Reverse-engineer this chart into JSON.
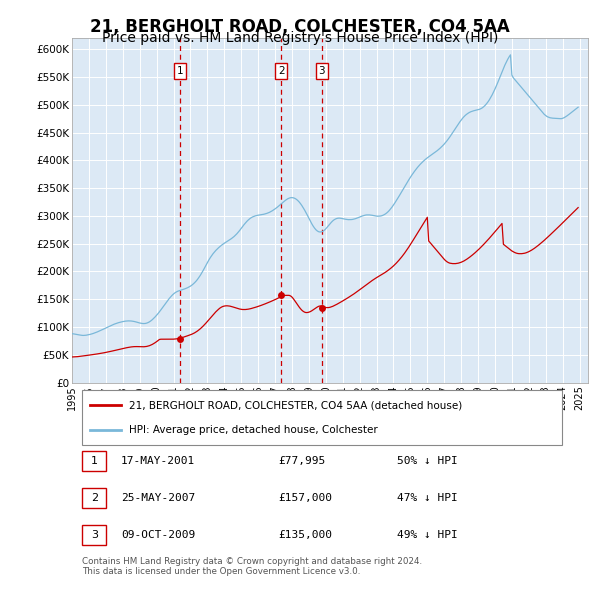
{
  "title": "21, BERGHOLT ROAD, COLCHESTER, CO4 5AA",
  "subtitle": "Price paid vs. HM Land Registry's House Price Index (HPI)",
  "title_fontsize": 12,
  "subtitle_fontsize": 10,
  "plot_bg_color": "#dce9f5",
  "ylim": [
    0,
    620000
  ],
  "yticks": [
    0,
    50000,
    100000,
    150000,
    200000,
    250000,
    300000,
    350000,
    400000,
    450000,
    500000,
    550000,
    600000
  ],
  "ytick_labels": [
    "£0",
    "£50K",
    "£100K",
    "£150K",
    "£200K",
    "£250K",
    "£300K",
    "£350K",
    "£400K",
    "£450K",
    "£500K",
    "£550K",
    "£600K"
  ],
  "xlim_start": 1995.0,
  "xlim_end": 2025.5,
  "hpi_color": "#7ab8d9",
  "price_color": "#cc0000",
  "vline_color": "#cc0000",
  "transactions": [
    {
      "date": "17-MAY-2001",
      "year": 2001.375,
      "price": 77995,
      "label": "1",
      "note": "50% ↓ HPI"
    },
    {
      "date": "25-MAY-2007",
      "year": 2007.375,
      "price": 157000,
      "label": "2",
      "note": "47% ↓ HPI"
    },
    {
      "date": "09-OCT-2009",
      "year": 2009.77,
      "price": 135000,
      "label": "3",
      "note": "49% ↓ HPI"
    }
  ],
  "legend_label_red": "21, BERGHOLT ROAD, COLCHESTER, CO4 5AA (detached house)",
  "legend_label_blue": "HPI: Average price, detached house, Colchester",
  "footer_line1": "Contains HM Land Registry data © Crown copyright and database right 2024.",
  "footer_line2": "This data is licensed under the Open Government Licence v3.0.",
  "hpi_data_years_start": 1995.0,
  "hpi_data_months": 360,
  "hpi_values": [
    88000,
    87500,
    87200,
    86800,
    86200,
    85800,
    85300,
    85000,
    84800,
    84900,
    85200,
    85700,
    86200,
    86800,
    87500,
    88300,
    89200,
    90200,
    91200,
    92300,
    93400,
    94600,
    95800,
    97000,
    98200,
    99500,
    100700,
    101900,
    103100,
    104200,
    105200,
    106100,
    107000,
    107800,
    108500,
    109100,
    109700,
    110200,
    110600,
    110900,
    111000,
    111000,
    110800,
    110500,
    110000,
    109400,
    108700,
    107900,
    107200,
    106700,
    106300,
    106200,
    106400,
    107000,
    108000,
    109400,
    111200,
    113300,
    115700,
    118300,
    121100,
    124100,
    127300,
    130700,
    134200,
    137800,
    141300,
    144800,
    148200,
    151400,
    154400,
    157100,
    159500,
    161500,
    163100,
    164400,
    165400,
    166200,
    167000,
    167800,
    168700,
    169700,
    170800,
    172100,
    173600,
    175400,
    177500,
    179900,
    182600,
    185700,
    189200,
    193000,
    197200,
    201700,
    206400,
    211200,
    215900,
    220400,
    224600,
    228400,
    231900,
    235000,
    237900,
    240500,
    242900,
    245100,
    247200,
    249100,
    250900,
    252600,
    254200,
    255800,
    257400,
    259100,
    261000,
    263100,
    265500,
    268100,
    271000,
    274200,
    277600,
    281000,
    284300,
    287400,
    290200,
    292700,
    294900,
    296700,
    298200,
    299300,
    300200,
    300900,
    301400,
    301800,
    302200,
    302600,
    303100,
    303700,
    304500,
    305400,
    306500,
    307800,
    309300,
    310900,
    312700,
    314600,
    316600,
    318700,
    320900,
    323100,
    325300,
    327400,
    329300,
    330900,
    332100,
    332900,
    333100,
    332700,
    331800,
    330300,
    328200,
    325600,
    322500,
    318900,
    314900,
    310600,
    306000,
    301100,
    296100,
    291100,
    286300,
    282000,
    278300,
    275200,
    273000,
    271600,
    271100,
    271400,
    272500,
    274300,
    276800,
    279700,
    282800,
    285900,
    288800,
    291300,
    293300,
    294700,
    295700,
    296100,
    296100,
    295700,
    295200,
    294600,
    294100,
    293700,
    293400,
    293400,
    293500,
    293800,
    294400,
    295100,
    296000,
    297000,
    298100,
    299200,
    300100,
    300900,
    301500,
    301900,
    302000,
    301900,
    301600,
    301200,
    300700,
    300200,
    299800,
    299600,
    299700,
    300000,
    300700,
    301800,
    303200,
    305000,
    307200,
    309800,
    312800,
    316100,
    319700,
    323500,
    327500,
    331600,
    335800,
    340100,
    344400,
    348700,
    353000,
    357300,
    361500,
    365600,
    369600,
    373500,
    377200,
    380700,
    384100,
    387300,
    390300,
    393100,
    395700,
    398200,
    400500,
    402700,
    404700,
    406600,
    408400,
    410200,
    412000,
    413800,
    415700,
    417600,
    419700,
    421900,
    424300,
    426800,
    429500,
    432500,
    435600,
    439000,
    442500,
    446200,
    450000,
    453900,
    457800,
    461700,
    465500,
    469200,
    472700,
    475900,
    478800,
    481300,
    483400,
    485200,
    486700,
    487900,
    488800,
    489600,
    490200,
    490800,
    491400,
    492200,
    493300,
    494800,
    496800,
    499200,
    502100,
    505400,
    509200,
    513500,
    518100,
    523200,
    528600,
    534400,
    540500,
    546700,
    553100,
    559500,
    565700,
    571600,
    577000,
    582000,
    586400,
    590300,
    554000,
    549000,
    546000,
    543000,
    540000,
    537000,
    534000,
    531000,
    528000,
    525000,
    522000,
    519000,
    516000,
    513000,
    510000,
    507000,
    504000,
    501000,
    498000,
    495000,
    492000,
    489000,
    486000,
    483000,
    481000,
    479000,
    478000,
    477000,
    476500,
    476200,
    476000,
    475800,
    475600,
    475500,
    475400,
    475300,
    476000,
    477000,
    478500,
    480200,
    482000,
    484000,
    486000,
    488000,
    490000,
    492000,
    494000,
    496000
  ],
  "price_hpi_values": [
    46000,
    46100,
    46200,
    46400,
    46600,
    46900,
    47200,
    47500,
    47900,
    48200,
    48600,
    49000,
    49300,
    49700,
    50000,
    50400,
    50700,
    51100,
    51500,
    51900,
    52300,
    52700,
    53200,
    53700,
    54200,
    54800,
    55300,
    55900,
    56400,
    57000,
    57600,
    58200,
    58800,
    59400,
    60000,
    60600,
    61200,
    61800,
    62300,
    62800,
    63300,
    63700,
    64100,
    64400,
    64600,
    64700,
    64700,
    64600,
    64500,
    64400,
    64400,
    64400,
    64600,
    65000,
    65600,
    66400,
    67500,
    68700,
    70200,
    71800,
    73600,
    75500,
    77500,
    77995,
    77995,
    77995,
    77995,
    77995,
    77995,
    77995,
    77995,
    77995,
    78100,
    78300,
    78600,
    79000,
    79500,
    80100,
    80800,
    81600,
    82400,
    83300,
    84200,
    85100,
    86000,
    87000,
    88200,
    89500,
    91100,
    92800,
    94700,
    96800,
    99100,
    101600,
    104200,
    107000,
    109900,
    112900,
    115900,
    118900,
    121800,
    124600,
    127300,
    129800,
    132100,
    134200,
    135800,
    137000,
    137700,
    138100,
    138200,
    138000,
    137600,
    137000,
    136200,
    135400,
    134500,
    133700,
    132900,
    132300,
    131800,
    131500,
    131400,
    131500,
    131700,
    132100,
    132600,
    133200,
    133900,
    134600,
    135400,
    136200,
    137000,
    137900,
    138800,
    139700,
    140700,
    141700,
    142700,
    143800,
    144800,
    145900,
    147000,
    148100,
    149300,
    150500,
    151700,
    152900,
    154200,
    155500,
    156800,
    157000,
    157000,
    157000,
    157000,
    156000,
    154000,
    151000,
    147500,
    143800,
    140000,
    136400,
    133100,
    130300,
    128200,
    126700,
    126000,
    126100,
    126700,
    127700,
    129100,
    130800,
    132600,
    134400,
    136000,
    137300,
    137900,
    137800,
    137200,
    136200,
    135000,
    135000,
    135000,
    135500,
    136300,
    137300,
    138500,
    139700,
    141100,
    142500,
    143900,
    145400,
    146900,
    148400,
    149900,
    151500,
    153100,
    154700,
    156300,
    158000,
    159700,
    161500,
    163300,
    165100,
    167000,
    168900,
    170800,
    172700,
    174600,
    176500,
    178400,
    180300,
    182100,
    183900,
    185600,
    187300,
    188900,
    190400,
    191900,
    193400,
    194900,
    196500,
    198100,
    199800,
    201700,
    203600,
    205600,
    207700,
    210000,
    212400,
    215000,
    217700,
    220600,
    223600,
    226700,
    230000,
    233400,
    237000,
    240700,
    244500,
    248400,
    252400,
    256500,
    260600,
    264700,
    268800,
    273000,
    277100,
    281200,
    285300,
    289400,
    293500,
    297600,
    255000,
    252000,
    249000,
    246000,
    243000,
    240000,
    237000,
    234000,
    231000,
    228000,
    225000,
    222000,
    219500,
    217500,
    216000,
    215000,
    214500,
    214200,
    214100,
    214200,
    214500,
    215000,
    215700,
    216600,
    217700,
    219000,
    220500,
    222100,
    223800,
    225700,
    227600,
    229700,
    231800,
    234000,
    236300,
    238700,
    241100,
    243600,
    246200,
    248800,
    251500,
    254200,
    257000,
    259800,
    262700,
    265600,
    268500,
    271500,
    274500,
    277500,
    280500,
    283500,
    286500,
    249000,
    247000,
    245000,
    243000,
    241000,
    239000,
    237000,
    235500,
    234200,
    233200,
    232500,
    232100,
    232000,
    232100,
    232400,
    232900,
    233600,
    234600,
    235700,
    237000,
    238500,
    240100,
    241800,
    243700,
    245600,
    247600,
    249700,
    251800,
    254000,
    256200,
    258500,
    260800,
    263200,
    265600,
    268000,
    270400,
    272800,
    275300,
    277700,
    280200,
    282600,
    285100,
    287600,
    290100,
    292600,
    295100,
    297600,
    300100,
    302600,
    305100,
    307600,
    310100,
    312600,
    315100
  ]
}
